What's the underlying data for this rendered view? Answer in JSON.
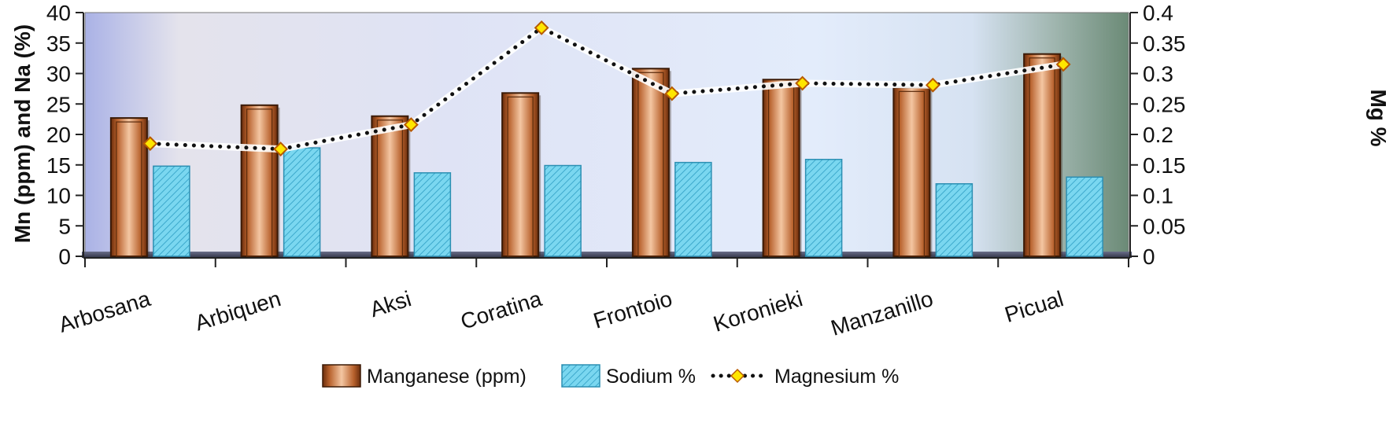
{
  "chart_data": {
    "type": "bar",
    "categories": [
      "Arbosana",
      "Arbiquen",
      "Aksi",
      "Coratina",
      "Frontoio",
      "Koronieki",
      "Manzanillo",
      "Picual"
    ],
    "series": [
      {
        "name": "Manganese (ppm)",
        "type": "bar",
        "axis": "left",
        "values": [
          22.7,
          24.8,
          23.0,
          26.8,
          30.8,
          29.0,
          27.7,
          33.2
        ]
      },
      {
        "name": "Sodium  %",
        "type": "bar",
        "axis": "left",
        "values": [
          14.8,
          17.8,
          13.7,
          14.9,
          15.4,
          15.9,
          11.9,
          13.0
        ]
      },
      {
        "name": "Magnesium %",
        "type": "line",
        "axis": "right",
        "values": [
          0.185,
          0.176,
          0.216,
          0.375,
          0.267,
          0.284,
          0.281,
          0.315
        ]
      }
    ],
    "ylabel": "Mn (ppm) and Na (%)",
    "y2label": "Mg %",
    "ylim": [
      0,
      40
    ],
    "y2lim": [
      0,
      0.4
    ],
    "yticks": [
      "0",
      "5",
      "10",
      "15",
      "20",
      "25",
      "30",
      "35",
      "40"
    ],
    "y2ticks": [
      "0",
      "0.05",
      "0.1",
      "0.15",
      "0.2",
      "0.25",
      "0.3",
      "0.35",
      "0.4"
    ],
    "legend_position": "bottom",
    "colors": {
      "manganese": "#c8733f",
      "sodium": "#6fd0ea",
      "magnesium_line": "#111111",
      "magnesium_marker": "#ffe600"
    }
  }
}
